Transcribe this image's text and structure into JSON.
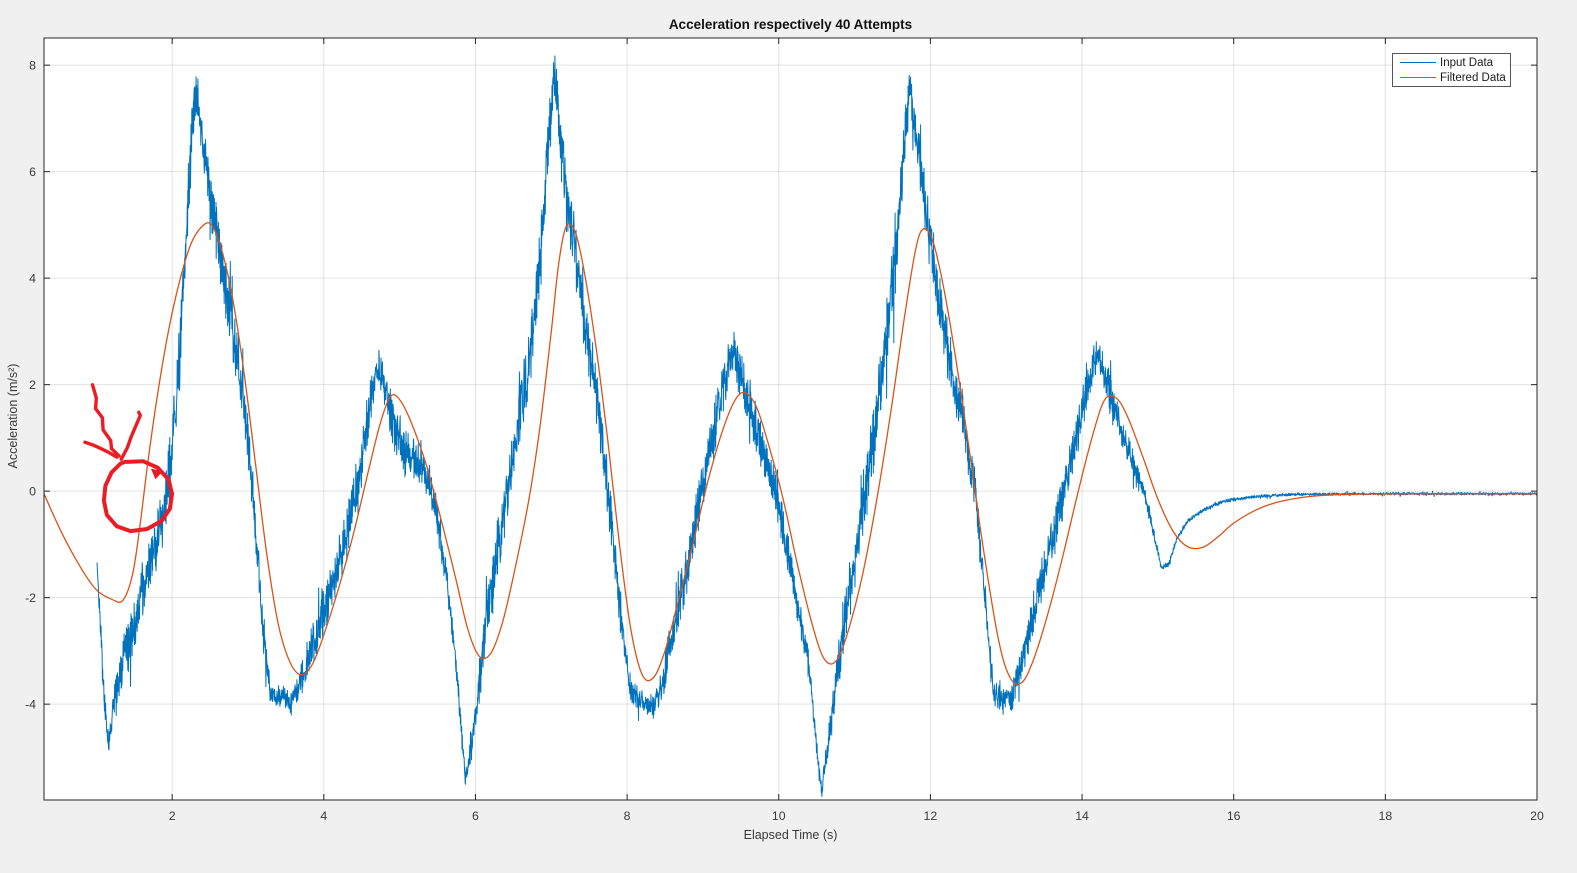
{
  "window": {
    "background": "#f0f0f0",
    "plot_background": "#ffffff"
  },
  "chart_data": {
    "type": "line",
    "title": "Acceleration respectively 40 Attempts",
    "xlabel": "Elapsed Time (s)",
    "ylabel": "Acceleration (m/s²)",
    "xlim": [
      0.31,
      20
    ],
    "ylim": [
      -5.8,
      8.51
    ],
    "xticks": [
      2,
      4,
      6,
      8,
      10,
      12,
      14,
      16,
      18,
      20
    ],
    "yticks": [
      8,
      6,
      4,
      2,
      0,
      -2,
      -4
    ],
    "grid": true,
    "axes_color": "#262626",
    "tick_label_color": "#3a3a3a",
    "grid_color": "rgba(38,38,38,0.13)",
    "legend": {
      "position": "northeast",
      "border_color": "#555555",
      "entries": [
        {
          "label": "Input Data",
          "color": "#0072BD"
        },
        {
          "label": "Filtered Data",
          "color": "#D95319"
        }
      ]
    },
    "series": [
      {
        "name": "Input Data",
        "color": "#0072BD",
        "style": "noisy",
        "line_width": 1,
        "noise_seed": 42,
        "sample_step": 0.0035,
        "trend_keypoints": [
          [
            1.01,
            -1.35,
            0.03
          ],
          [
            1.03,
            -1.9,
            0.12
          ],
          [
            1.06,
            -2.6,
            0.25
          ],
          [
            1.1,
            -3.9,
            0.35
          ],
          [
            1.16,
            -4.75,
            0.18
          ],
          [
            1.22,
            -4.1,
            0.35
          ],
          [
            1.32,
            -3.35,
            0.45
          ],
          [
            1.45,
            -2.75,
            0.5
          ],
          [
            1.6,
            -1.95,
            0.5
          ],
          [
            1.75,
            -1.15,
            0.5
          ],
          [
            1.9,
            -0.35,
            0.55
          ],
          [
            2.0,
            0.7,
            0.6
          ],
          [
            2.1,
            2.6,
            0.65
          ],
          [
            2.2,
            5.2,
            0.7
          ],
          [
            2.28,
            7.1,
            0.5
          ],
          [
            2.33,
            7.5,
            0.35
          ],
          [
            2.4,
            6.6,
            0.45
          ],
          [
            2.5,
            5.6,
            0.5
          ],
          [
            2.65,
            4.3,
            0.55
          ],
          [
            2.8,
            3.0,
            0.55
          ],
          [
            2.95,
            1.6,
            0.5
          ],
          [
            3.08,
            -0.3,
            0.4
          ],
          [
            3.2,
            -2.6,
            0.35
          ],
          [
            3.3,
            -3.8,
            0.22
          ],
          [
            3.45,
            -3.85,
            0.2
          ],
          [
            3.57,
            -4.0,
            0.2
          ],
          [
            3.68,
            -3.6,
            0.3
          ],
          [
            3.85,
            -2.9,
            0.4
          ],
          [
            4.05,
            -2.0,
            0.5
          ],
          [
            4.25,
            -1.1,
            0.5
          ],
          [
            4.45,
            0.1,
            0.5
          ],
          [
            4.6,
            1.5,
            0.5
          ],
          [
            4.7,
            2.3,
            0.4
          ],
          [
            4.8,
            1.95,
            0.45
          ],
          [
            4.95,
            1.15,
            0.45
          ],
          [
            5.1,
            0.65,
            0.45
          ],
          [
            5.3,
            0.45,
            0.4
          ],
          [
            5.45,
            -0.1,
            0.35
          ],
          [
            5.6,
            -1.4,
            0.3
          ],
          [
            5.72,
            -2.9,
            0.25
          ],
          [
            5.87,
            -5.45,
            0.18
          ],
          [
            5.95,
            -4.8,
            0.3
          ],
          [
            6.1,
            -2.95,
            0.45
          ],
          [
            6.3,
            -0.95,
            0.55
          ],
          [
            6.5,
            0.7,
            0.6
          ],
          [
            6.7,
            2.3,
            0.6
          ],
          [
            6.85,
            4.3,
            0.65
          ],
          [
            6.98,
            6.8,
            0.7
          ],
          [
            7.04,
            7.9,
            0.45
          ],
          [
            7.12,
            6.6,
            0.55
          ],
          [
            7.25,
            5.1,
            0.6
          ],
          [
            7.4,
            3.5,
            0.6
          ],
          [
            7.6,
            1.8,
            0.55
          ],
          [
            7.78,
            -0.4,
            0.45
          ],
          [
            7.93,
            -2.5,
            0.35
          ],
          [
            8.05,
            -3.8,
            0.22
          ],
          [
            8.2,
            -3.95,
            0.2
          ],
          [
            8.35,
            -4.05,
            0.2
          ],
          [
            8.45,
            -3.75,
            0.28
          ],
          [
            8.6,
            -2.65,
            0.4
          ],
          [
            8.78,
            -1.5,
            0.45
          ],
          [
            8.95,
            -0.2,
            0.5
          ],
          [
            9.1,
            0.85,
            0.5
          ],
          [
            9.25,
            1.9,
            0.45
          ],
          [
            9.38,
            2.6,
            0.35
          ],
          [
            9.5,
            2.2,
            0.4
          ],
          [
            9.65,
            1.4,
            0.45
          ],
          [
            9.8,
            0.75,
            0.45
          ],
          [
            9.95,
            0.1,
            0.4
          ],
          [
            10.1,
            -1.0,
            0.35
          ],
          [
            10.25,
            -2.2,
            0.3
          ],
          [
            10.4,
            -3.3,
            0.25
          ],
          [
            10.56,
            -5.6,
            0.18
          ],
          [
            10.66,
            -4.7,
            0.3
          ],
          [
            10.8,
            -3.1,
            0.45
          ],
          [
            11.0,
            -1.3,
            0.55
          ],
          [
            11.2,
            0.5,
            0.6
          ],
          [
            11.38,
            2.4,
            0.6
          ],
          [
            11.55,
            4.5,
            0.6
          ],
          [
            11.68,
            6.9,
            0.55
          ],
          [
            11.73,
            7.5,
            0.4
          ],
          [
            11.82,
            6.6,
            0.5
          ],
          [
            11.95,
            5.2,
            0.55
          ],
          [
            12.1,
            3.8,
            0.55
          ],
          [
            12.28,
            2.2,
            0.5
          ],
          [
            12.42,
            1.5,
            0.45
          ],
          [
            12.58,
            0.1,
            0.4
          ],
          [
            12.72,
            -2.0,
            0.3
          ],
          [
            12.83,
            -3.8,
            0.25
          ],
          [
            12.95,
            -3.95,
            0.22
          ],
          [
            13.08,
            -3.85,
            0.25
          ],
          [
            13.2,
            -3.2,
            0.35
          ],
          [
            13.38,
            -2.2,
            0.4
          ],
          [
            13.55,
            -1.2,
            0.4
          ],
          [
            13.75,
            -0.1,
            0.4
          ],
          [
            13.95,
            1.2,
            0.4
          ],
          [
            14.1,
            2.2,
            0.35
          ],
          [
            14.2,
            2.55,
            0.3
          ],
          [
            14.35,
            1.95,
            0.35
          ],
          [
            14.5,
            1.15,
            0.3
          ],
          [
            14.65,
            0.6,
            0.25
          ],
          [
            14.8,
            0.1,
            0.15
          ],
          [
            14.93,
            -0.7,
            0.1
          ],
          [
            15.05,
            -1.45,
            0.06
          ],
          [
            15.15,
            -1.35,
            0.06
          ],
          [
            15.25,
            -0.9,
            0.05
          ],
          [
            15.4,
            -0.55,
            0.04
          ],
          [
            15.6,
            -0.35,
            0.035
          ],
          [
            15.9,
            -0.18,
            0.03
          ],
          [
            16.3,
            -0.1,
            0.03
          ],
          [
            16.8,
            -0.06,
            0.025
          ],
          [
            18.0,
            -0.05,
            0.025
          ],
          [
            20.0,
            -0.05,
            0.025
          ]
        ]
      },
      {
        "name": "Filtered Data",
        "color": "#D95319",
        "style": "smooth",
        "line_width": 1.3,
        "points": [
          [
            0.31,
            -0.05
          ],
          [
            0.55,
            -0.8
          ],
          [
            0.8,
            -1.45
          ],
          [
            1.0,
            -1.85
          ],
          [
            1.2,
            -2.03
          ],
          [
            1.35,
            -2.05
          ],
          [
            1.48,
            -1.55
          ],
          [
            1.58,
            -0.6
          ],
          [
            1.68,
            0.55
          ],
          [
            1.8,
            1.75
          ],
          [
            1.95,
            3.0
          ],
          [
            2.1,
            3.95
          ],
          [
            2.25,
            4.65
          ],
          [
            2.4,
            4.98
          ],
          [
            2.52,
            5.0
          ],
          [
            2.65,
            4.55
          ],
          [
            2.8,
            3.6
          ],
          [
            2.95,
            2.2
          ],
          [
            3.1,
            0.5
          ],
          [
            3.25,
            -1.2
          ],
          [
            3.4,
            -2.5
          ],
          [
            3.55,
            -3.2
          ],
          [
            3.7,
            -3.45
          ],
          [
            3.85,
            -3.25
          ],
          [
            4.0,
            -2.7
          ],
          [
            4.2,
            -1.8
          ],
          [
            4.4,
            -0.75
          ],
          [
            4.6,
            0.45
          ],
          [
            4.75,
            1.3
          ],
          [
            4.88,
            1.78
          ],
          [
            5.0,
            1.72
          ],
          [
            5.15,
            1.3
          ],
          [
            5.35,
            0.5
          ],
          [
            5.55,
            -0.55
          ],
          [
            5.75,
            -1.7
          ],
          [
            5.9,
            -2.6
          ],
          [
            6.05,
            -3.1
          ],
          [
            6.2,
            -3.05
          ],
          [
            6.35,
            -2.5
          ],
          [
            6.5,
            -1.6
          ],
          [
            6.7,
            -0.2
          ],
          [
            6.85,
            1.2
          ],
          [
            7.0,
            3.0
          ],
          [
            7.1,
            4.3
          ],
          [
            7.2,
            4.98
          ],
          [
            7.32,
            4.85
          ],
          [
            7.45,
            4.0
          ],
          [
            7.6,
            2.6
          ],
          [
            7.75,
            0.9
          ],
          [
            7.9,
            -1.0
          ],
          [
            8.05,
            -2.6
          ],
          [
            8.2,
            -3.45
          ],
          [
            8.35,
            -3.5
          ],
          [
            8.5,
            -3.0
          ],
          [
            8.65,
            -2.2
          ],
          [
            8.85,
            -1.1
          ],
          [
            9.05,
            0.1
          ],
          [
            9.25,
            1.1
          ],
          [
            9.42,
            1.7
          ],
          [
            9.55,
            1.85
          ],
          [
            9.7,
            1.6
          ],
          [
            9.85,
            0.95
          ],
          [
            10.05,
            -0.1
          ],
          [
            10.25,
            -1.4
          ],
          [
            10.45,
            -2.55
          ],
          [
            10.6,
            -3.15
          ],
          [
            10.75,
            -3.2
          ],
          [
            10.9,
            -2.7
          ],
          [
            11.1,
            -1.6
          ],
          [
            11.3,
            -0.1
          ],
          [
            11.5,
            1.7
          ],
          [
            11.65,
            3.2
          ],
          [
            11.8,
            4.5
          ],
          [
            11.9,
            4.92
          ],
          [
            12.02,
            4.75
          ],
          [
            12.15,
            4.0
          ],
          [
            12.3,
            2.8
          ],
          [
            12.5,
            0.9
          ],
          [
            12.7,
            -1.1
          ],
          [
            12.9,
            -2.8
          ],
          [
            13.05,
            -3.5
          ],
          [
            13.2,
            -3.6
          ],
          [
            13.35,
            -3.2
          ],
          [
            13.55,
            -2.3
          ],
          [
            13.75,
            -1.2
          ],
          [
            13.95,
            0.0
          ],
          [
            14.15,
            1.1
          ],
          [
            14.3,
            1.72
          ],
          [
            14.45,
            1.75
          ],
          [
            14.6,
            1.4
          ],
          [
            14.8,
            0.65
          ],
          [
            15.0,
            -0.15
          ],
          [
            15.2,
            -0.75
          ],
          [
            15.4,
            -1.05
          ],
          [
            15.6,
            -1.05
          ],
          [
            15.8,
            -0.85
          ],
          [
            16.0,
            -0.6
          ],
          [
            16.3,
            -0.35
          ],
          [
            16.6,
            -0.2
          ],
          [
            17.0,
            -0.1
          ],
          [
            17.5,
            -0.06
          ],
          [
            18.5,
            -0.05
          ],
          [
            20,
            -0.05
          ]
        ]
      }
    ],
    "annotation": {
      "description": "hand-drawn red down arrow and circle highlighting input-data noise near t=1.5",
      "color": "#ED1C24",
      "strokes": [
        {
          "name": "arrow-shaft",
          "width": 3.4,
          "closed": false,
          "points": [
            [
              0.95,
              2.0
            ],
            [
              1.0,
              1.75
            ],
            [
              0.99,
              1.55
            ],
            [
              1.08,
              1.38
            ],
            [
              1.09,
              1.15
            ],
            [
              1.19,
              0.95
            ],
            [
              1.2,
              0.8
            ],
            [
              1.3,
              0.66
            ]
          ]
        },
        {
          "name": "arrow-left-head",
          "width": 3.4,
          "closed": false,
          "points": [
            [
              0.85,
              0.92
            ],
            [
              0.97,
              0.86
            ],
            [
              1.06,
              0.8
            ],
            [
              1.16,
              0.73
            ],
            [
              1.27,
              0.64
            ]
          ]
        },
        {
          "name": "arrow-right-branch",
          "width": 3.4,
          "closed": false,
          "points": [
            [
              1.33,
              0.6
            ],
            [
              1.41,
              0.82
            ],
            [
              1.46,
              1.02
            ],
            [
              1.52,
              1.22
            ],
            [
              1.58,
              1.42
            ],
            [
              1.56,
              1.48
            ]
          ]
        },
        {
          "name": "circle",
          "width": 4.0,
          "closed": true,
          "points": [
            [
              1.38,
              0.55
            ],
            [
              1.62,
              0.56
            ],
            [
              1.81,
              0.44
            ],
            [
              1.95,
              0.22
            ],
            [
              2.0,
              -0.05
            ],
            [
              1.97,
              -0.33
            ],
            [
              1.86,
              -0.56
            ],
            [
              1.67,
              -0.71
            ],
            [
              1.45,
              -0.75
            ],
            [
              1.27,
              -0.66
            ],
            [
              1.14,
              -0.45
            ],
            [
              1.1,
              -0.18
            ],
            [
              1.12,
              0.1
            ],
            [
              1.2,
              0.35
            ],
            [
              1.32,
              0.52
            ]
          ]
        }
      ],
      "arrowhead": {
        "points": [
          [
            1.72,
            0.42
          ],
          [
            1.88,
            0.38
          ],
          [
            1.78,
            0.22
          ]
        ]
      }
    }
  }
}
